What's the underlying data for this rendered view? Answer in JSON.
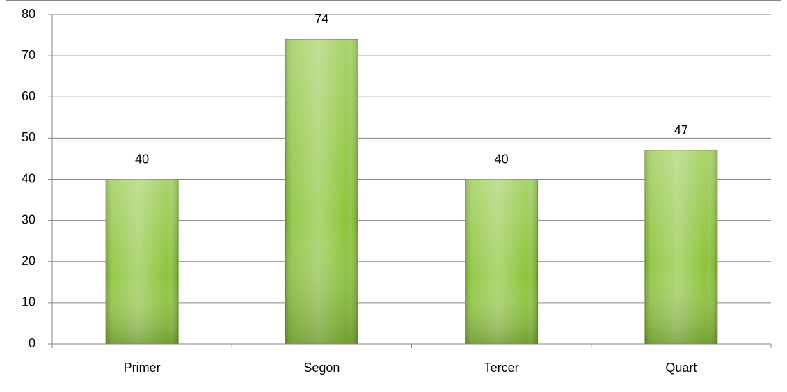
{
  "chart_data": {
    "type": "bar",
    "categories": [
      "Primer",
      "Segon",
      "Tercer",
      "Quart"
    ],
    "values": [
      40,
      74,
      40,
      47
    ],
    "color": "#8cc43a",
    "ylim": [
      0,
      80
    ],
    "yticks": [
      0,
      10,
      20,
      30,
      40,
      50,
      60,
      70,
      80
    ],
    "grid": true
  }
}
